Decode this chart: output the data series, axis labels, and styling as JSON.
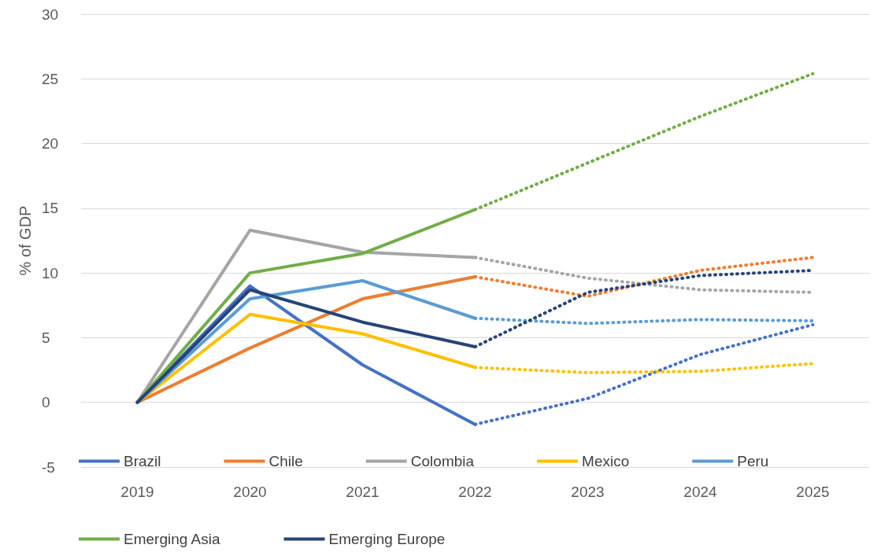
{
  "chart_data": {
    "type": "line",
    "ylabel": "% of GDP",
    "categories": [
      "2019",
      "2020",
      "2021",
      "2022",
      "2023",
      "2024",
      "2025"
    ],
    "ylim": [
      -5,
      30
    ],
    "yticks": [
      -5,
      0,
      5,
      10,
      15,
      20,
      25,
      30
    ],
    "grid": "y",
    "legend": "bottom",
    "marker": "none",
    "series": [
      {
        "name": "Brazil",
        "color": "#4472c4",
        "line_style": "solid",
        "values": [
          0,
          9.0,
          2.9,
          -1.7,
          null,
          null,
          null
        ]
      },
      {
        "name": "Chile",
        "color": "#ed7d31",
        "line_style": "solid",
        "values": [
          0,
          4.2,
          8.0,
          9.7,
          null,
          null,
          null
        ]
      },
      {
        "name": "Colombia",
        "color": "#a5a5a5",
        "line_style": "solid",
        "values": [
          0,
          13.3,
          11.6,
          11.2,
          null,
          null,
          null
        ]
      },
      {
        "name": "Mexico",
        "color": "#ffc000",
        "line_style": "solid",
        "values": [
          0,
          6.8,
          5.3,
          2.7,
          null,
          null,
          null
        ]
      },
      {
        "name": "Peru",
        "color": "#5b9bd5",
        "line_style": "solid",
        "values": [
          0,
          8.0,
          9.4,
          6.5,
          null,
          null,
          null
        ]
      },
      {
        "name": "Emerging Asia",
        "color": "#70ad47",
        "line_style": "solid",
        "values": [
          0,
          10.0,
          11.5,
          14.9,
          null,
          null,
          null
        ]
      },
      {
        "name": "Emerging Europe",
        "color": "#264478",
        "line_style": "solid",
        "values": [
          0,
          8.7,
          6.2,
          4.3,
          null,
          null,
          null
        ]
      },
      {
        "color": "#4472c4",
        "line_style": "dotted",
        "values": [
          null,
          null,
          null,
          -1.7,
          0.3,
          3.7,
          6.0
        ]
      },
      {
        "color": "#ed7d31",
        "line_style": "dotted",
        "values": [
          null,
          null,
          null,
          9.7,
          8.2,
          10.2,
          11.2
        ]
      },
      {
        "color": "#a5a5a5",
        "line_style": "dotted",
        "values": [
          null,
          null,
          null,
          11.2,
          9.6,
          8.7,
          8.5
        ]
      },
      {
        "color": "#ffc000",
        "line_style": "dotted",
        "values": [
          null,
          null,
          null,
          2.7,
          2.3,
          2.4,
          3.0
        ]
      },
      {
        "color": "#5b9bd5",
        "line_style": "dotted",
        "values": [
          null,
          null,
          null,
          6.5,
          6.1,
          6.4,
          6.3
        ]
      },
      {
        "color": "#70ad47",
        "line_style": "dotted",
        "values": [
          null,
          null,
          null,
          14.9,
          18.5,
          22.1,
          25.4
        ]
      },
      {
        "color": "#264478",
        "line_style": "dotted",
        "values": [
          null,
          null,
          null,
          4.3,
          8.5,
          9.8,
          10.2
        ]
      }
    ]
  }
}
